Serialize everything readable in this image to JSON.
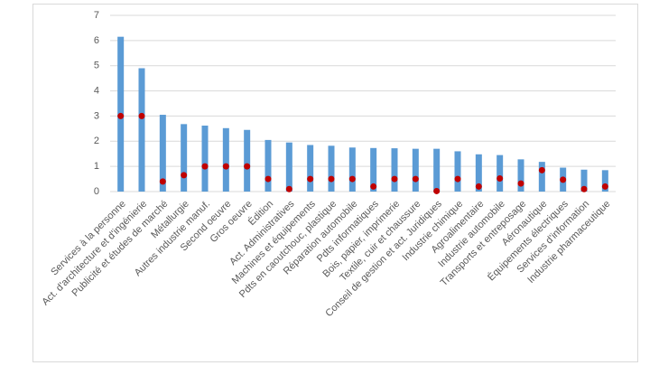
{
  "chart_data": {
    "type": "bar",
    "categories": [
      "Services à la personne",
      "Act. d'architecture et d'ingénierie",
      "Publicité et études de marché",
      "Métallurgie",
      "Autres industrie manuf.",
      "Second oeuvre",
      "Gros oeuvre",
      "Édition",
      "Act. Administratives",
      "Machines et équipements",
      "Pdts en caoutchouc, plastique",
      "Réparation automobile",
      "Pdts informatiques",
      "Bois, papier, imprimerie",
      "Textile, cuir et chaussure",
      "Conseil de gestion et act. Juridiques",
      "Industrie chimique",
      "Agroalimentaire",
      "Industrie automobile",
      "Transports et entreposage",
      "Aéronautique",
      "Équipements électriques",
      "Services d'information",
      "Industrie pharmaceutique"
    ],
    "series": [
      {
        "style": "bar",
        "color": "#5b9bd5",
        "values": [
          6.15,
          4.9,
          3.05,
          2.68,
          2.62,
          2.52,
          2.45,
          2.05,
          1.95,
          1.85,
          1.82,
          1.75,
          1.73,
          1.72,
          1.7,
          1.7,
          1.6,
          1.48,
          1.45,
          1.28,
          1.18,
          0.95,
          0.87,
          0.85
        ]
      },
      {
        "style": "dot",
        "color": "#c00000",
        "values": [
          3.0,
          3.0,
          0.4,
          0.65,
          1.0,
          1.0,
          1.0,
          0.5,
          0.1,
          0.5,
          0.5,
          0.5,
          0.2,
          0.5,
          0.5,
          0.02,
          0.5,
          0.2,
          0.52,
          0.32,
          0.85,
          0.47,
          0.1,
          0.2
        ]
      }
    ],
    "ylim": [
      0,
      7
    ],
    "yticks": [
      0,
      1,
      2,
      3,
      4,
      5,
      6,
      7
    ],
    "grid": true
  }
}
